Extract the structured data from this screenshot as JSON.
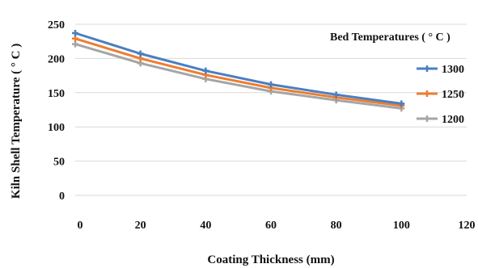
{
  "chart_data": {
    "type": "line",
    "title": "",
    "xlabel": "Coating Thickness (mm)",
    "ylabel": "Kiln Shell Temperature  ( ° C )",
    "xlim": [
      0,
      120
    ],
    "ylim": [
      0,
      250
    ],
    "xticks": [
      "0",
      "20",
      "40",
      "60",
      "80",
      "100",
      "120"
    ],
    "yticks": [
      "0",
      "50",
      "100",
      "150",
      "200",
      "250"
    ],
    "grid": true,
    "legend": {
      "title": "Bed Temperatures ( ° C )",
      "position": "right"
    },
    "x": [
      0,
      20,
      40,
      60,
      80,
      100
    ],
    "series": [
      {
        "name": "1300",
        "color": "#4a7fc1",
        "values": [
          237,
          207,
          182,
          162,
          147,
          134
        ]
      },
      {
        "name": "1250",
        "color": "#ed7d31",
        "values": [
          229,
          200,
          176,
          157,
          143,
          131
        ]
      },
      {
        "name": "1200",
        "color": "#a5a5a5",
        "values": [
          221,
          193,
          170,
          152,
          139,
          127
        ]
      }
    ]
  }
}
